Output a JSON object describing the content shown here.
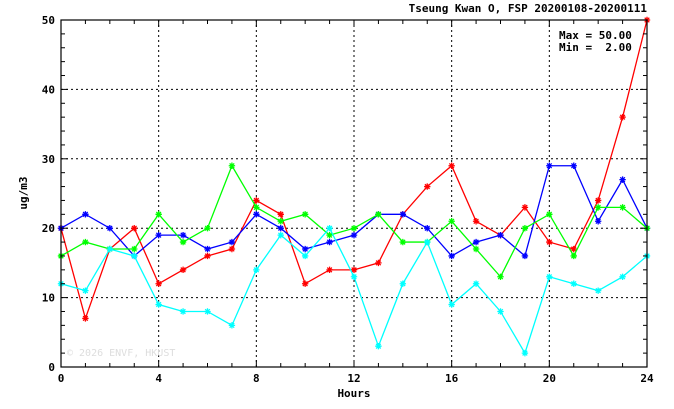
{
  "chart_data": {
    "type": "line",
    "title": "Tseung Kwan O, FSP 20200108-20200111",
    "xlabel": "Hours",
    "ylabel": "ug/m3",
    "xlim": [
      0,
      24
    ],
    "ylim": [
      0,
      50
    ],
    "x_ticks": [
      0,
      4,
      8,
      12,
      16,
      20,
      24
    ],
    "y_ticks": [
      0,
      10,
      20,
      30,
      40,
      50
    ],
    "grid": true,
    "max_label": "Max = 50.00",
    "min_label": "Min =  2.00",
    "watermark": "© 2026  ENVF, HKUST",
    "x": [
      0,
      1,
      2,
      3,
      4,
      5,
      6,
      7,
      8,
      9,
      10,
      11,
      12,
      13,
      14,
      15,
      16,
      17,
      18,
      19,
      20,
      21,
      22,
      23,
      24
    ],
    "series": [
      {
        "color": "#ff0000",
        "values": [
          20,
          7,
          17,
          20,
          12,
          14,
          16,
          17,
          24,
          22,
          12,
          14,
          14,
          15,
          22,
          26,
          29,
          21,
          19,
          23,
          18,
          17,
          24,
          36,
          50
        ]
      },
      {
        "color": "#0000ff",
        "values": [
          20,
          22,
          20,
          16,
          19,
          19,
          17,
          18,
          22,
          20,
          17,
          18,
          19,
          22,
          22,
          20,
          16,
          18,
          19,
          16,
          29,
          29,
          21,
          27,
          20
        ]
      },
      {
        "color": "#00ff00",
        "values": [
          16,
          18,
          17,
          17,
          22,
          18,
          20,
          29,
          23,
          21,
          22,
          19,
          20,
          22,
          18,
          18,
          21,
          17,
          13,
          20,
          22,
          16,
          23,
          23,
          20
        ]
      },
      {
        "color": "#00ffff",
        "values": [
          12,
          11,
          17,
          16,
          9,
          8,
          8,
          6,
          14,
          19,
          16,
          20,
          13,
          3,
          12,
          18,
          9,
          12,
          8,
          2,
          13,
          12,
          11,
          13,
          16
        ]
      }
    ]
  }
}
